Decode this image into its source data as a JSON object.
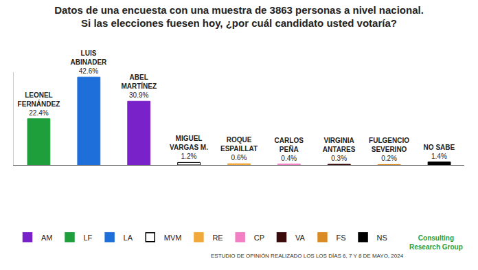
{
  "chart_data": {
    "type": "bar",
    "title": "Datos de una encuesta con una muestra de 3863 personas a nivel nacional.\nSi las elecciones fuesen hoy, ¿por cuál candidato usted votaría?",
    "categories": [
      "LEONEL FERNÁNDEZ",
      "LUIS ABINADER",
      "ABEL MARTÍNEZ",
      "MIGUEL VARGAS M.",
      "ROQUE ESPAILLAT",
      "CARLOS PEÑA",
      "VIRGINIA ANTARES",
      "FULGENCIO SEVERINO",
      "NO SABE"
    ],
    "values": [
      22.4,
      42.6,
      30.9,
      1.2,
      0.6,
      0.4,
      0.3,
      0.2,
      1.4
    ],
    "value_labels": [
      "22.4%",
      "42.6%",
      "30.9%",
      "1.2%",
      "0.6%",
      "0.4%",
      "0.3%",
      "0.2%",
      "1.4%"
    ],
    "colors": [
      "#1f9e3c",
      "#1e6fd9",
      "#7a22c9",
      "#ffffff",
      "#f2a93b",
      "#f27fc3",
      "#3b0b0b",
      "#d98c24",
      "#000000"
    ],
    "data_labels": true,
    "tick_labels": false,
    "grid": false,
    "ylim": [
      0,
      45
    ],
    "yticks": [
      0
    ],
    "legend": "bottom left",
    "legend_entries": [
      {
        "label": "AM",
        "color": "#7a22c9"
      },
      {
        "label": "LF",
        "color": "#1f9e3c"
      },
      {
        "label": "LA",
        "color": "#1e6fd9"
      },
      {
        "label": "MVM",
        "color": "#ffffff"
      },
      {
        "label": "RE",
        "color": "#f2a93b"
      },
      {
        "label": "CP",
        "color": "#f27fc3"
      },
      {
        "label": "VA",
        "color": "#3b0b0b"
      },
      {
        "label": "FS",
        "color": "#d98c24"
      },
      {
        "label": "NS",
        "color": "#000000"
      }
    ],
    "footnote": "ESTUDIO DE OPINIÓN REALIZADO LOS LOS DÍAS 6, 7 Y 8 DE MAYO, 2024",
    "logo_text": [
      "Consulting",
      "Research Group"
    ]
  }
}
